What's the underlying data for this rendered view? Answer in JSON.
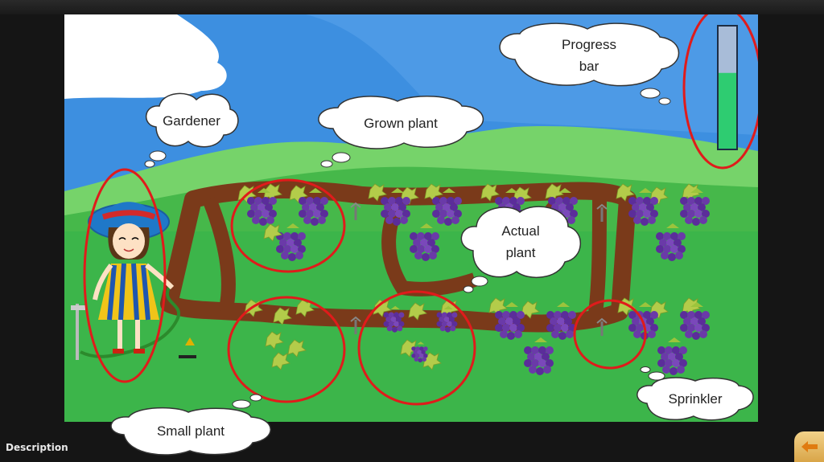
{
  "footer": {
    "description_label": "Description"
  },
  "callouts": {
    "gardener": "Gardener",
    "grown_plant": "Grown plant",
    "progress_bar": "Progress\n        bar",
    "actual_plant": "Actual\nplant",
    "small_plant": "Small plant",
    "sprinkler": "Sprinkler"
  },
  "progress": {
    "fill_fraction": 0.62
  },
  "colors": {
    "sky": "#3d8fe0",
    "grass": "#3cb54a",
    "highlight_ring": "#e01b1b",
    "grape": "#6a3aa8",
    "progress_fill": "#2ecc71",
    "progress_track": "#a8bcd8"
  },
  "icons": {
    "back": "back-arrow-icon"
  }
}
